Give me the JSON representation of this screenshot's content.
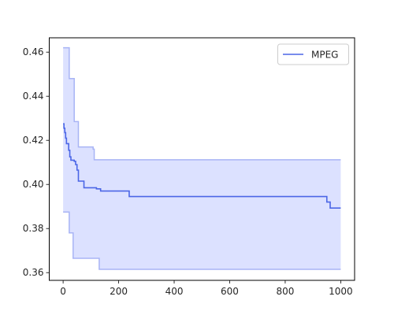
{
  "chart_data": {
    "type": "line",
    "title": "",
    "xlabel": "",
    "ylabel": "",
    "xlim": [
      -50,
      1050
    ],
    "ylim": [
      0.3565,
      0.4665
    ],
    "x_ticks": [
      0,
      200,
      400,
      600,
      800,
      1000
    ],
    "y_ticks": [
      0.36,
      0.38,
      0.4,
      0.42,
      0.44,
      0.46
    ],
    "x_tick_labels": [
      "0",
      "200",
      "400",
      "600",
      "800",
      "1000"
    ],
    "y_tick_labels": [
      "0.36",
      "0.38",
      "0.40",
      "0.42",
      "0.44",
      "0.46"
    ],
    "grid": false,
    "legend": {
      "position": "top-right",
      "entries": [
        "MPEG"
      ]
    },
    "series": [
      {
        "name": "MPEG",
        "color": "#4b66e6",
        "band_color": "#dce1ff",
        "band_edge_color": "#a8b4f5",
        "step": true,
        "line": [
          [
            0,
            0.4275
          ],
          [
            3,
            0.4255
          ],
          [
            6,
            0.4235
          ],
          [
            9,
            0.421
          ],
          [
            12,
            0.4185
          ],
          [
            20,
            0.4155
          ],
          [
            24,
            0.4125
          ],
          [
            28,
            0.411
          ],
          [
            40,
            0.4105
          ],
          [
            45,
            0.409
          ],
          [
            50,
            0.4065
          ],
          [
            55,
            0.4015
          ],
          [
            75,
            0.3985
          ],
          [
            120,
            0.398
          ],
          [
            135,
            0.397
          ],
          [
            238,
            0.3945
          ],
          [
            950,
            0.392
          ],
          [
            962,
            0.3893
          ],
          [
            1000,
            0.3893
          ]
        ],
        "upper": [
          [
            0,
            0.462
          ],
          [
            22,
            0.448
          ],
          [
            40,
            0.4285
          ],
          [
            55,
            0.417
          ],
          [
            108,
            0.416
          ],
          [
            112,
            0.4112
          ],
          [
            1000,
            0.4112
          ]
        ],
        "lower": [
          [
            0,
            0.3875
          ],
          [
            22,
            0.378
          ],
          [
            36,
            0.3665
          ],
          [
            130,
            0.3615
          ],
          [
            1000,
            0.3615
          ]
        ]
      }
    ]
  }
}
